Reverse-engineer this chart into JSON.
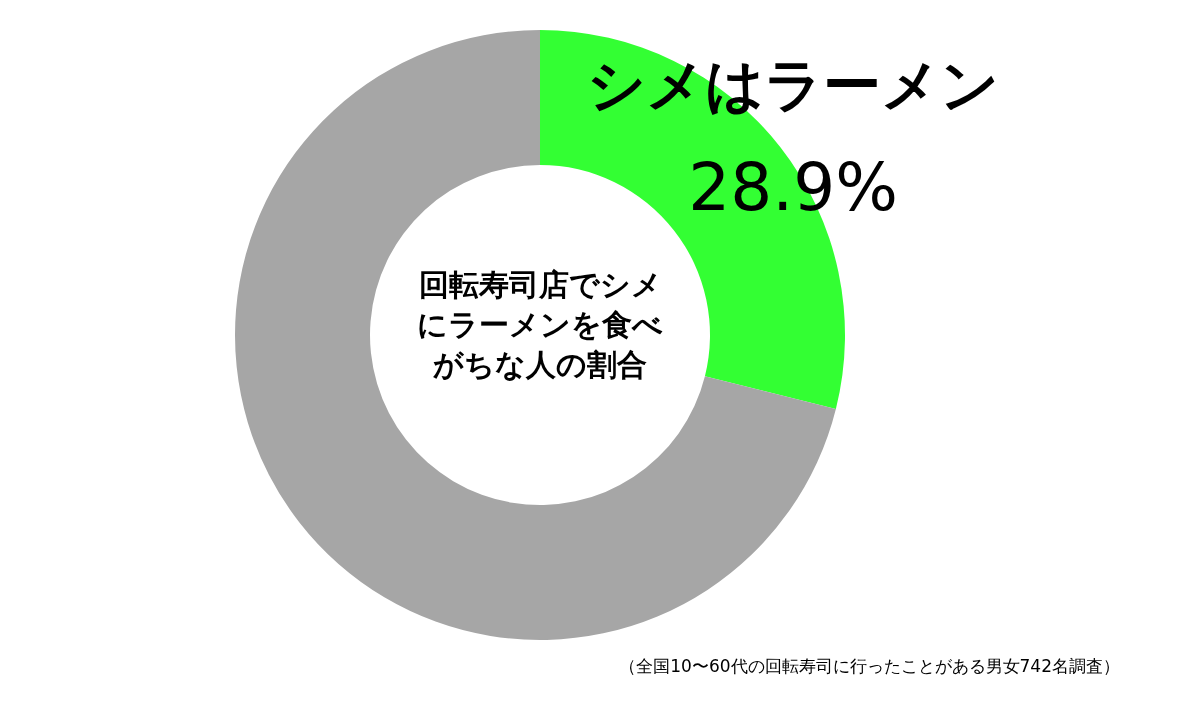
{
  "chart_data": {
    "type": "donut",
    "title": "回転寿司店でシメにラーメンを食べがちな人の割合",
    "categories": [
      "シメはラーメン",
      null
    ],
    "values": [
      28.9,
      71.1
    ],
    "colors": [
      "#33ff33",
      "#a6a6a6"
    ],
    "value_labels": [
      "28.9%",
      null
    ],
    "annotations": [
      "（全国10〜60代の回転寿司に行ったことがある男女742名調査）"
    ]
  }
}
